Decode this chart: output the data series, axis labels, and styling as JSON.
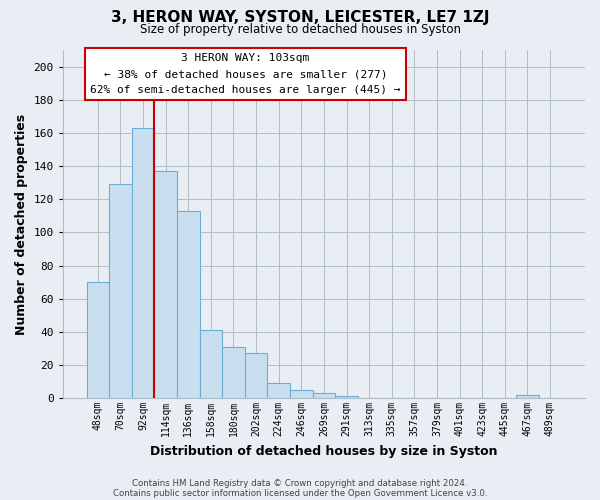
{
  "title": "3, HERON WAY, SYSTON, LEICESTER, LE7 1ZJ",
  "subtitle": "Size of property relative to detached houses in Syston",
  "xlabel": "Distribution of detached houses by size in Syston",
  "ylabel": "Number of detached properties",
  "bar_labels": [
    "48sqm",
    "70sqm",
    "92sqm",
    "114sqm",
    "136sqm",
    "158sqm",
    "180sqm",
    "202sqm",
    "224sqm",
    "246sqm",
    "269sqm",
    "291sqm",
    "313sqm",
    "335sqm",
    "357sqm",
    "379sqm",
    "401sqm",
    "423sqm",
    "445sqm",
    "467sqm",
    "489sqm"
  ],
  "bar_values": [
    70,
    129,
    163,
    137,
    113,
    41,
    31,
    27,
    9,
    5,
    3,
    1,
    0,
    0,
    0,
    0,
    0,
    0,
    0,
    2,
    0
  ],
  "bar_color": "#c9dff0",
  "bar_edge_color": "#6aaed6",
  "vline_x_index": 3,
  "vline_color": "#cc0000",
  "annotation_title": "3 HERON WAY: 103sqm",
  "annotation_line1": "← 38% of detached houses are smaller (277)",
  "annotation_line2": "62% of semi-detached houses are larger (445) →",
  "annotation_box_color": "#ffffff",
  "annotation_box_edge": "#cc0000",
  "ylim": [
    0,
    210
  ],
  "yticks": [
    0,
    20,
    40,
    60,
    80,
    100,
    120,
    140,
    160,
    180,
    200
  ],
  "footer1": "Contains HM Land Registry data © Crown copyright and database right 2024.",
  "footer2": "Contains public sector information licensed under the Open Government Licence v3.0.",
  "bg_color": "#e8eef4",
  "plot_bg_color": "#e8eef4"
}
